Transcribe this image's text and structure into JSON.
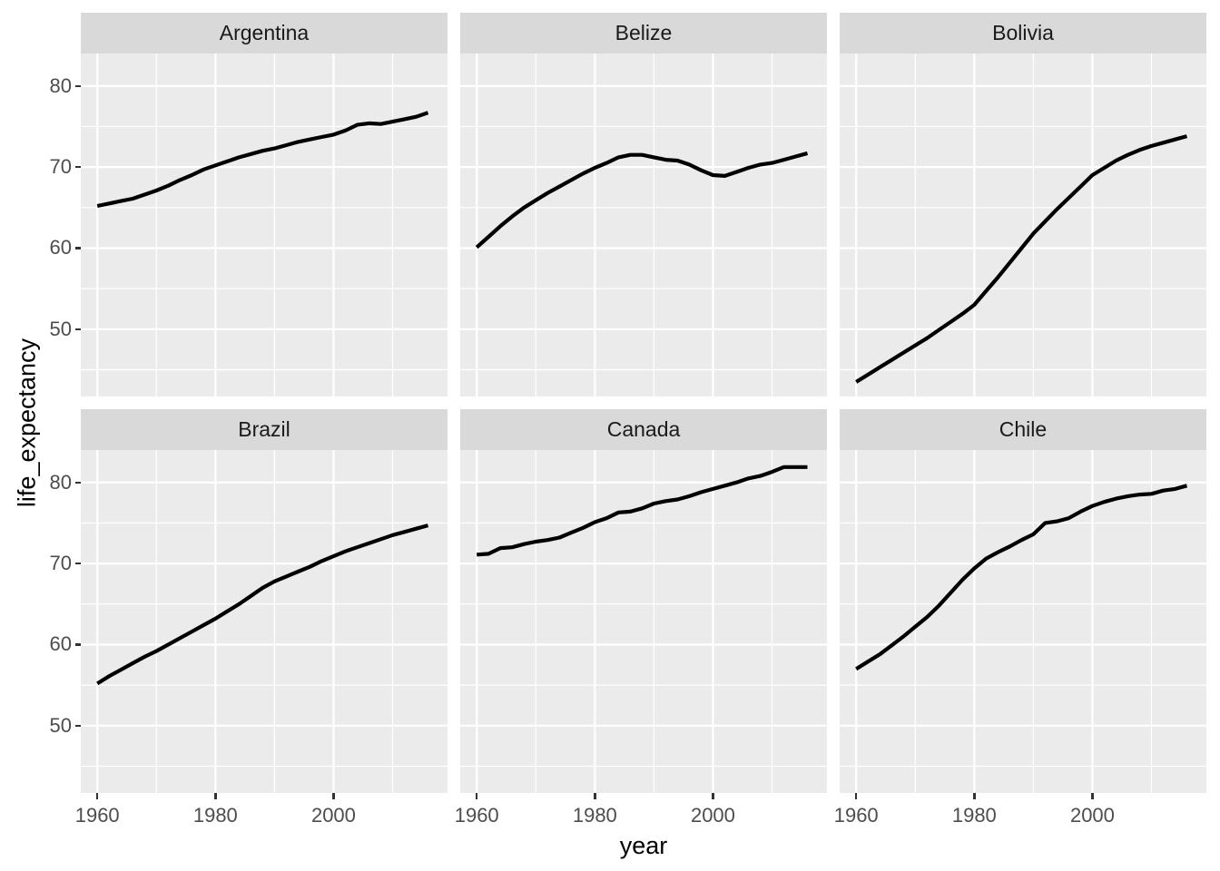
{
  "chart_data": {
    "type": "line",
    "title": "",
    "xlabel": "year",
    "ylabel": "life_expectancy",
    "legend_position": "none",
    "grid": "white major/minor gridlines on grey panels",
    "facet_layout": "2 rows x 3 columns, shared fixed scales",
    "xlim": [
      1957.2,
      2019.3
    ],
    "ylim": [
      41.7,
      84.0
    ],
    "x_ticks": [
      1960,
      1980,
      2000
    ],
    "x_minor_ticks": [
      1970,
      1990,
      2010
    ],
    "y_ticks": [
      50,
      60,
      70,
      80
    ],
    "y_minor_ticks": [
      45,
      55,
      65,
      75
    ],
    "x": [
      1960,
      1962,
      1964,
      1966,
      1968,
      1970,
      1972,
      1974,
      1976,
      1978,
      1980,
      1982,
      1984,
      1986,
      1988,
      1990,
      1992,
      1994,
      1996,
      1998,
      2000,
      2002,
      2004,
      2006,
      2008,
      2010,
      2012,
      2014,
      2016
    ],
    "facets": [
      {
        "label": "Argentina",
        "values": [
          65.2,
          65.5,
          65.8,
          66.1,
          66.6,
          67.1,
          67.7,
          68.4,
          69.0,
          69.7,
          70.2,
          70.7,
          71.2,
          71.6,
          72.0,
          72.3,
          72.7,
          73.1,
          73.4,
          73.7,
          74.0,
          74.5,
          75.2,
          75.4,
          75.3,
          75.6,
          75.9,
          76.2,
          76.7
        ]
      },
      {
        "label": "Belize",
        "values": [
          60.1,
          61.4,
          62.7,
          63.9,
          65.0,
          65.9,
          66.8,
          67.6,
          68.4,
          69.2,
          69.9,
          70.5,
          71.2,
          71.5,
          71.5,
          71.2,
          70.9,
          70.8,
          70.3,
          69.6,
          69.0,
          68.9,
          69.4,
          69.9,
          70.3,
          70.5,
          70.9,
          71.3,
          71.7
        ]
      },
      {
        "label": "Bolivia",
        "values": [
          43.5,
          44.4,
          45.3,
          46.2,
          47.1,
          48.0,
          48.9,
          49.9,
          50.9,
          51.9,
          53.0,
          54.7,
          56.4,
          58.2,
          60.0,
          61.8,
          63.3,
          64.8,
          66.2,
          67.6,
          69.0,
          69.9,
          70.8,
          71.5,
          72.1,
          72.6,
          73.0,
          73.4,
          73.8
        ]
      },
      {
        "label": "Brazil",
        "values": [
          55.2,
          56.1,
          56.9,
          57.7,
          58.5,
          59.2,
          60.0,
          60.8,
          61.6,
          62.4,
          63.2,
          64.1,
          65.0,
          66.0,
          67.0,
          67.8,
          68.4,
          69.0,
          69.6,
          70.3,
          70.9,
          71.5,
          72.0,
          72.5,
          73.0,
          73.5,
          73.9,
          74.3,
          74.7
        ]
      },
      {
        "label": "Canada",
        "values": [
          71.1,
          71.2,
          71.9,
          72.0,
          72.4,
          72.7,
          72.9,
          73.2,
          73.8,
          74.4,
          75.1,
          75.6,
          76.3,
          76.4,
          76.8,
          77.4,
          77.7,
          77.9,
          78.3,
          78.8,
          79.2,
          79.6,
          80.0,
          80.5,
          80.8,
          81.3,
          81.9,
          81.9,
          81.9
        ]
      },
      {
        "label": "Chile",
        "values": [
          57.0,
          57.9,
          58.8,
          59.9,
          61.0,
          62.2,
          63.4,
          64.8,
          66.4,
          68.0,
          69.4,
          70.6,
          71.4,
          72.1,
          72.9,
          73.6,
          75.0,
          75.2,
          75.6,
          76.4,
          77.1,
          77.6,
          78.0,
          78.3,
          78.5,
          78.6,
          79.0,
          79.2,
          79.6
        ]
      }
    ]
  },
  "theme": {
    "plot_background": "#FFFFFF",
    "panel_background": "#EBEBEB",
    "strip_background": "#D9D9D9",
    "grid_color": "#FFFFFF",
    "line_color": "#000000",
    "axis_text_color": "#4D4D4D",
    "strip_text_color": "#1A1A1A",
    "axis_title_color": "#000000",
    "tick_mark_color": "#333333"
  }
}
